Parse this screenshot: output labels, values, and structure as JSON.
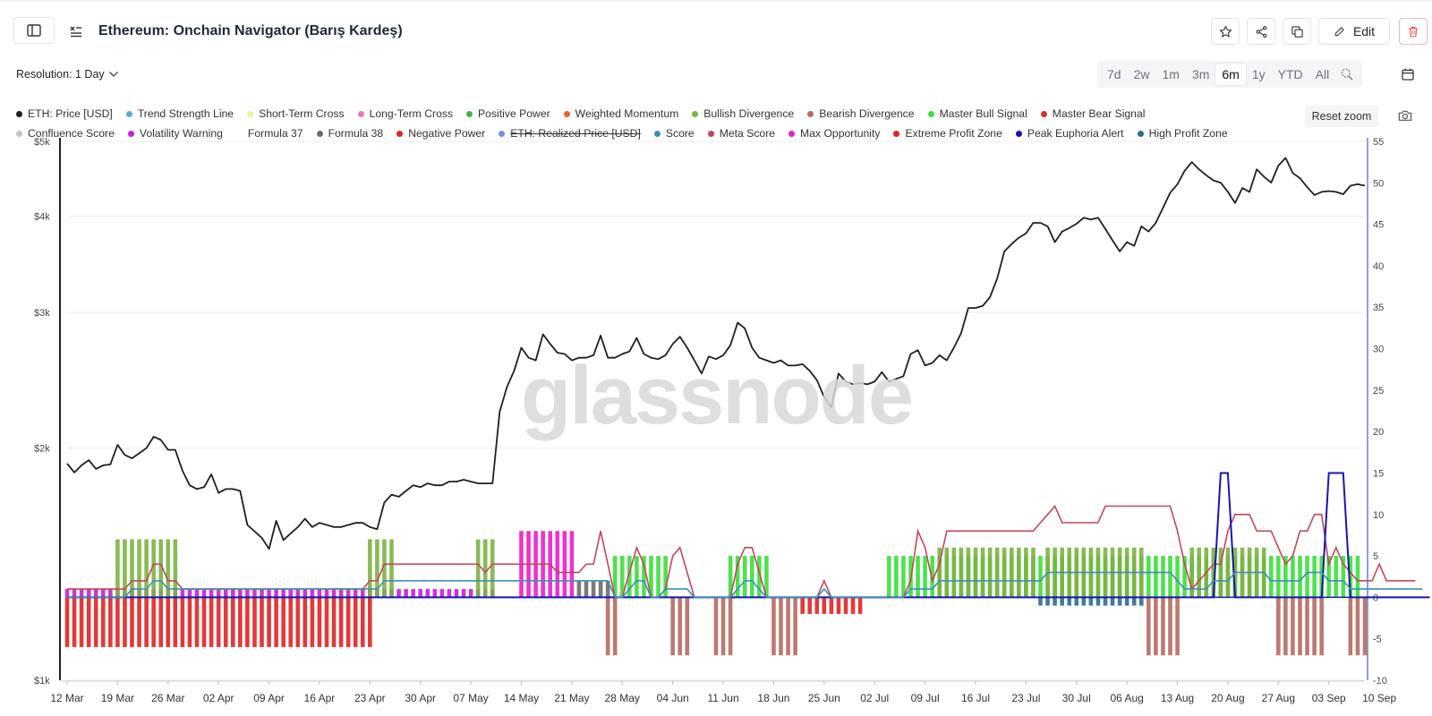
{
  "header": {
    "title": "Ethereum: Onchain Navigator (Barış Kardeş)",
    "edit_label": "Edit",
    "icons": [
      "sidebar-toggle-icon",
      "formula-icon",
      "star-icon",
      "share-icon",
      "duplicate-icon",
      "pencil-icon",
      "trash-icon"
    ]
  },
  "toolbar": {
    "resolution_label": "Resolution: 1 Day",
    "ranges": [
      "7d",
      "2w",
      "1m",
      "3m",
      "6m",
      "1y",
      "YTD",
      "All"
    ],
    "active_range": "6m",
    "reset_zoom_label": "Reset zoom"
  },
  "legend": {
    "row1": [
      {
        "label": "ETH: Price [USD]",
        "color": "#1f1f1f"
      },
      {
        "label": "Trend Strength Line",
        "color": "#5fa8c8"
      },
      {
        "label": "Short-Term Cross",
        "color": "#f3f09a"
      },
      {
        "label": "Long-Term Cross",
        "color": "#e57ab8"
      },
      {
        "label": "Positive Power",
        "color": "#4caf50"
      },
      {
        "label": "Weighted Momentum",
        "color": "#e8622c"
      },
      {
        "label": "Bullish Divergence",
        "color": "#7cb342"
      },
      {
        "label": "Bearish Divergence",
        "color": "#b56c62"
      },
      {
        "label": "Master Bull Signal",
        "color": "#3cde3c"
      },
      {
        "label": "Master Bear Signal",
        "color": "#d32f2f"
      }
    ],
    "row2": [
      {
        "label": "Confluence Score",
        "color": "#c4c4c4",
        "struck": false
      },
      {
        "label": "Volatility Warning",
        "color": "#c51fd6",
        "struck": false
      },
      {
        "label": "Formula 37",
        "color": "#ffffff",
        "struck": false
      },
      {
        "label": "Formula 38",
        "color": "#6b6b6b",
        "struck": false
      },
      {
        "label": "Negative Power",
        "color": "#e02424",
        "struck": false
      },
      {
        "label": "ETH: Realized Price [USD]",
        "color": "#7a8fe0",
        "struck": true
      },
      {
        "label": "Score",
        "color": "#3d8fb5",
        "struck": false
      },
      {
        "label": "Meta Score",
        "color": "#c2475a",
        "struck": false
      },
      {
        "label": "Max Opportunity",
        "color": "#e91ec9",
        "struck": false
      },
      {
        "label": "Extreme Profit Zone",
        "color": "#e02424",
        "struck": false
      },
      {
        "label": "Peak Euphoria Alert",
        "color": "#1616b0",
        "struck": false
      },
      {
        "label": "High Profit Zone",
        "color": "#2f6b8f",
        "struck": false
      }
    ]
  },
  "watermark": "glassnode",
  "chart_data": {
    "type": "line",
    "title": "",
    "y_left": {
      "ticks": [
        "$1k",
        "$2k",
        "$3k",
        "$4k",
        "$5k"
      ],
      "scale": "log",
      "range": [
        1000,
        5000
      ]
    },
    "y_right": {
      "ticks": [
        "-10",
        "-5",
        "0",
        "5",
        "10",
        "15",
        "20",
        "25",
        "30",
        "35",
        "40",
        "45",
        "50",
        "55"
      ],
      "range": [
        -10,
        55
      ]
    },
    "x_labels": [
      "12 Mar",
      "19 Mar",
      "26 Mar",
      "02 Apr",
      "09 Apr",
      "16 Apr",
      "23 Apr",
      "30 Apr",
      "07 May",
      "14 May",
      "21 May",
      "28 May",
      "04 Jun",
      "11 Jun",
      "18 Jun",
      "25 Jun",
      "02 Jul",
      "09 Jul",
      "16 Jul",
      "23 Jul",
      "30 Jul",
      "06 Aug",
      "13 Aug",
      "20 Aug",
      "27 Aug",
      "03 Sep",
      "10 Sep"
    ],
    "price_series": {
      "name": "ETH: Price [USD]",
      "values": [
        1910,
        1860,
        1900,
        1930,
        1880,
        1900,
        1905,
        2020,
        1960,
        1940,
        1970,
        2000,
        2070,
        2050,
        1990,
        1990,
        1870,
        1790,
        1770,
        1780,
        1850,
        1750,
        1770,
        1770,
        1760,
        1590,
        1560,
        1530,
        1480,
        1610,
        1520,
        1550,
        1580,
        1620,
        1580,
        1600,
        1590,
        1580,
        1580,
        1590,
        1600,
        1600,
        1580,
        1570,
        1700,
        1740,
        1730,
        1760,
        1790,
        1780,
        1800,
        1790,
        1790,
        1810,
        1810,
        1820,
        1810,
        1800,
        1800,
        1800,
        2230,
        2400,
        2520,
        2700,
        2620,
        2600,
        2810,
        2730,
        2660,
        2650,
        2600,
        2620,
        2620,
        2640,
        2800,
        2620,
        2620,
        2650,
        2670,
        2780,
        2650,
        2620,
        2610,
        2640,
        2730,
        2790,
        2700,
        2600,
        2500,
        2630,
        2610,
        2640,
        2720,
        2910,
        2860,
        2700,
        2620,
        2600,
        2580,
        2600,
        2560,
        2560,
        2570,
        2520,
        2450,
        2330,
        2260,
        2500,
        2440,
        2420,
        2430,
        2420,
        2440,
        2510,
        2440,
        2460,
        2480,
        2650,
        2680,
        2560,
        2580,
        2640,
        2600,
        2700,
        2820,
        3040,
        3040,
        3060,
        3140,
        3320,
        3600,
        3680,
        3750,
        3800,
        3920,
        3920,
        3880,
        3700,
        3820,
        3860,
        3910,
        3980,
        3960,
        3980,
        3850,
        3720,
        3600,
        3700,
        3660,
        3880,
        3820,
        3920,
        4100,
        4290,
        4400,
        4580,
        4700,
        4600,
        4520,
        4450,
        4420,
        4300,
        4160,
        4350,
        4300,
        4600,
        4500,
        4420,
        4650,
        4760,
        4550,
        4480,
        4360,
        4260,
        4300,
        4310,
        4300,
        4270,
        4380,
        4400,
        4380
      ]
    },
    "score_series": [
      {
        "name": "Meta Score",
        "values": [
          1,
          1,
          1,
          1,
          1,
          1,
          1,
          1,
          1,
          2,
          2,
          2,
          4,
          4,
          2,
          2,
          1,
          1,
          1,
          1,
          1,
          1,
          1,
          1,
          1,
          1,
          1,
          1,
          1,
          1,
          1,
          1,
          1,
          1,
          1,
          1,
          1,
          1,
          1,
          1,
          1,
          1,
          2,
          2,
          4,
          4,
          4,
          4,
          4,
          4,
          4,
          4,
          4,
          4,
          4,
          4,
          4,
          4,
          3,
          4,
          4,
          4,
          4,
          4,
          4,
          4,
          4,
          4,
          3,
          3,
          3,
          3,
          4,
          4,
          8,
          4,
          0,
          0,
          3,
          6,
          4,
          0,
          0,
          1,
          5,
          6,
          3,
          0,
          0,
          0,
          0,
          0,
          0,
          4,
          6,
          6,
          3,
          0,
          0,
          0,
          0,
          0,
          0,
          0,
          0,
          2,
          0,
          0,
          0,
          0,
          0,
          0,
          0,
          0,
          0,
          0,
          0,
          2,
          8,
          6,
          2,
          4,
          8,
          8,
          8,
          8,
          8,
          8,
          8,
          8,
          8,
          8,
          8,
          8,
          8,
          9,
          10,
          11,
          9,
          9,
          9,
          9,
          9,
          9,
          11,
          11,
          11,
          11,
          11,
          11,
          11,
          11,
          11,
          11,
          8,
          4,
          1,
          2,
          3,
          4,
          4,
          8,
          10,
          10,
          10,
          8,
          8,
          8,
          6,
          4,
          5,
          8,
          8,
          10,
          10,
          4,
          6,
          4,
          3,
          2,
          2,
          2,
          4,
          2,
          2,
          2,
          2,
          2
        ]
      },
      {
        "name": "Peak Euphoria Alert",
        "values": [
          0,
          0,
          0,
          0,
          0,
          0,
          0,
          0,
          0,
          0,
          0,
          0,
          0,
          0,
          0,
          0,
          0,
          0,
          0,
          0,
          0,
          0,
          0,
          0,
          0,
          0,
          0,
          0,
          0,
          0,
          0,
          0,
          0,
          0,
          0,
          0,
          0,
          0,
          0,
          0,
          0,
          0,
          0,
          0,
          0,
          0,
          0,
          0,
          0,
          0,
          0,
          0,
          0,
          0,
          0,
          0,
          0,
          0,
          0,
          0,
          0,
          0,
          0,
          0,
          0,
          0,
          0,
          0,
          0,
          0,
          0,
          0,
          0,
          0,
          0,
          0,
          0,
          0,
          0,
          0,
          0,
          0,
          0,
          0,
          0,
          0,
          0,
          0,
          0,
          0,
          0,
          0,
          0,
          0,
          0,
          0,
          0,
          0,
          0,
          0,
          0,
          0,
          0,
          0,
          0,
          0,
          0,
          0,
          0,
          0,
          0,
          0,
          0,
          0,
          0,
          0,
          0,
          0,
          0,
          0,
          0,
          0,
          0,
          0,
          0,
          0,
          0,
          0,
          0,
          0,
          0,
          0,
          0,
          0,
          0,
          0,
          0,
          0,
          0,
          0,
          0,
          0,
          0,
          0,
          0,
          0,
          0,
          0,
          0,
          0,
          0,
          0,
          0,
          0,
          0,
          0,
          0,
          0,
          0,
          0,
          15,
          15,
          0,
          0,
          0,
          0,
          0,
          0,
          0,
          0,
          0,
          0,
          0,
          0,
          0,
          15,
          15,
          15,
          0,
          0,
          0,
          0,
          0,
          0,
          0,
          0,
          0,
          0,
          0,
          0
        ]
      },
      {
        "name": "Score",
        "values": [
          0,
          0,
          0,
          0,
          0,
          0,
          0,
          0,
          0,
          1,
          1,
          1,
          2,
          2,
          1,
          1,
          1,
          1,
          1,
          1,
          1,
          1,
          1,
          1,
          1,
          1,
          1,
          1,
          1,
          1,
          1,
          1,
          1,
          1,
          1,
          1,
          1,
          1,
          1,
          1,
          1,
          1,
          1,
          1,
          2,
          2,
          2,
          2,
          2,
          2,
          2,
          2,
          2,
          2,
          2,
          2,
          2,
          2,
          2,
          2,
          2,
          2,
          2,
          2,
          2,
          2,
          2,
          2,
          2,
          2,
          2,
          2,
          2,
          2,
          2,
          2,
          0,
          0,
          1,
          2,
          2,
          0,
          0,
          1,
          1,
          1,
          1,
          0,
          0,
          0,
          0,
          0,
          0,
          1,
          2,
          2,
          1,
          0,
          0,
          0,
          0,
          0,
          0,
          0,
          0,
          1,
          0,
          0,
          0,
          0,
          0,
          0,
          0,
          0,
          0,
          0,
          0,
          1,
          1,
          1,
          1,
          2,
          2,
          2,
          2,
          2,
          2,
          2,
          2,
          2,
          2,
          2,
          2,
          2,
          2,
          2,
          3,
          3,
          3,
          3,
          3,
          3,
          3,
          3,
          3,
          3,
          3,
          3,
          3,
          3,
          3,
          3,
          3,
          3,
          2,
          1,
          1,
          1,
          1,
          2,
          2,
          2,
          3,
          3,
          3,
          3,
          3,
          2,
          2,
          2,
          2,
          2,
          3,
          3,
          3,
          2,
          2,
          2,
          1,
          1,
          1,
          1,
          1,
          1,
          1,
          1,
          1,
          1,
          1
        ]
      }
    ],
    "bars": [
      {
        "name": "Negative Power",
        "from_day": 0,
        "to_day": 43,
        "value": -6
      },
      {
        "name": "Volatility Warning",
        "from_day": 0,
        "to_day": 60,
        "value": 1
      },
      {
        "name": "Bullish Divergence",
        "from_day": 7,
        "to_day": 16,
        "value": 7
      },
      {
        "name": "Bullish Divergence",
        "from_day": 42,
        "to_day": 46,
        "value": 7
      },
      {
        "name": "Bullish Divergence",
        "from_day": 57,
        "to_day": 60,
        "value": 7
      },
      {
        "name": "Max Opportunity",
        "from_day": 63,
        "to_day": 71,
        "value": 8
      },
      {
        "name": "Formula 38",
        "from_day": 71,
        "to_day": 76,
        "value": 2
      },
      {
        "name": "Bearish Divergence",
        "from_day": 75,
        "to_day": 77,
        "value": -7
      },
      {
        "name": "Master Bull Signal",
        "from_day": 76,
        "to_day": 84,
        "value": 5
      },
      {
        "name": "Master Bull Signal",
        "from_day": 92,
        "to_day": 98,
        "value": 5
      },
      {
        "name": "Bearish Divergence",
        "from_day": 84,
        "to_day": 87,
        "value": -7
      },
      {
        "name": "Bearish Divergence",
        "from_day": 90,
        "to_day": 93,
        "value": -7
      },
      {
        "name": "Bearish Divergence",
        "from_day": 98,
        "to_day": 102,
        "value": -7
      },
      {
        "name": "Negative Power",
        "from_day": 102,
        "to_day": 111,
        "value": -2
      },
      {
        "name": "Master Bull Signal",
        "from_day": 114,
        "to_day": 135,
        "value": 5
      },
      {
        "name": "Bullish Divergence",
        "from_day": 121,
        "to_day": 135,
        "value": 6
      },
      {
        "name": "Master Bull Signal",
        "from_day": 135,
        "to_day": 180,
        "value": 5
      },
      {
        "name": "Bullish Divergence",
        "from_day": 136,
        "to_day": 150,
        "value": 6
      },
      {
        "name": "Bullish Divergence",
        "from_day": 156,
        "to_day": 167,
        "value": 6
      },
      {
        "name": "High Profit Zone",
        "from_day": 135,
        "to_day": 150,
        "value": -1
      },
      {
        "name": "Bearish Divergence",
        "from_day": 150,
        "to_day": 155,
        "value": -7
      },
      {
        "name": "Bearish Divergence",
        "from_day": 168,
        "to_day": 175,
        "value": -7
      },
      {
        "name": "Bearish Divergence",
        "from_day": 178,
        "to_day": 190,
        "value": -7
      }
    ]
  }
}
